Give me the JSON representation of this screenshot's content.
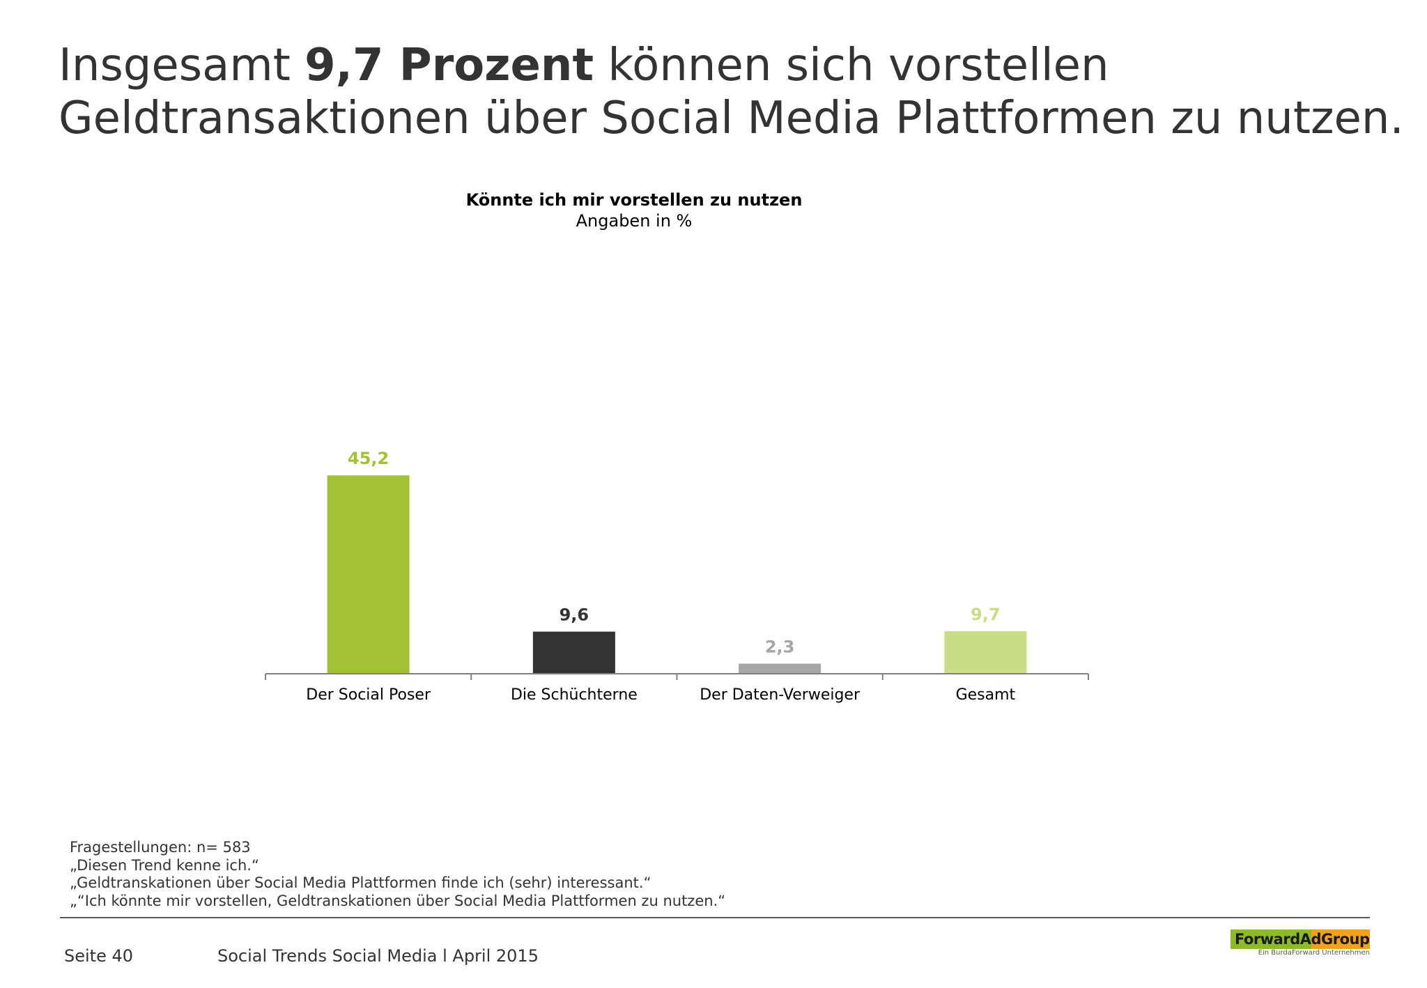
{
  "headline": {
    "prefix": "Insgesamt ",
    "bold": "9,7 Prozent",
    "suffix": " können sich vorstellen",
    "line2": "Geldtransaktionen über Social Media Plattformen zu nutzen."
  },
  "chart_data": {
    "type": "bar",
    "title": "Könnte ich mir vorstellen zu nutzen",
    "subtitle": "Angaben in %",
    "categories": [
      "Der Social Poser",
      "Die Schüchterne",
      "Der Daten-Verweiger",
      "Gesamt"
    ],
    "values": [
      45.2,
      9.6,
      2.3,
      9.7
    ],
    "value_labels": [
      "45,2",
      "9,6",
      "2,3",
      "9,7"
    ],
    "colors": [
      "#a2c137",
      "#333333",
      "#a6a6a6",
      "#c9dc86"
    ],
    "label_colors": [
      "#a2c137",
      "#333333",
      "#a6a6a6",
      "#c9dc86"
    ],
    "ylim": [
      0,
      100
    ],
    "grid": false,
    "legend": "none"
  },
  "footnotes": [
    "Fragestellungen: n= 583",
    "„Diesen Trend kenne ich.“",
    "„Geldtranskationen über Social Media Plattformen finde ich (sehr) interessant.“",
    "„“Ich könnte mir vorstellen, Geldtranskationen über Social Media Plattformen zu nutzen.“"
  ],
  "footer": {
    "page": "Seite 40",
    "report": "Social Trends Social Media l April 2015"
  },
  "logo": {
    "name": "ForwardAdGroup",
    "tagline": "Ein BurdaForward Unternehmen",
    "colors": [
      "#8dbb25",
      "#f3a11a"
    ]
  }
}
